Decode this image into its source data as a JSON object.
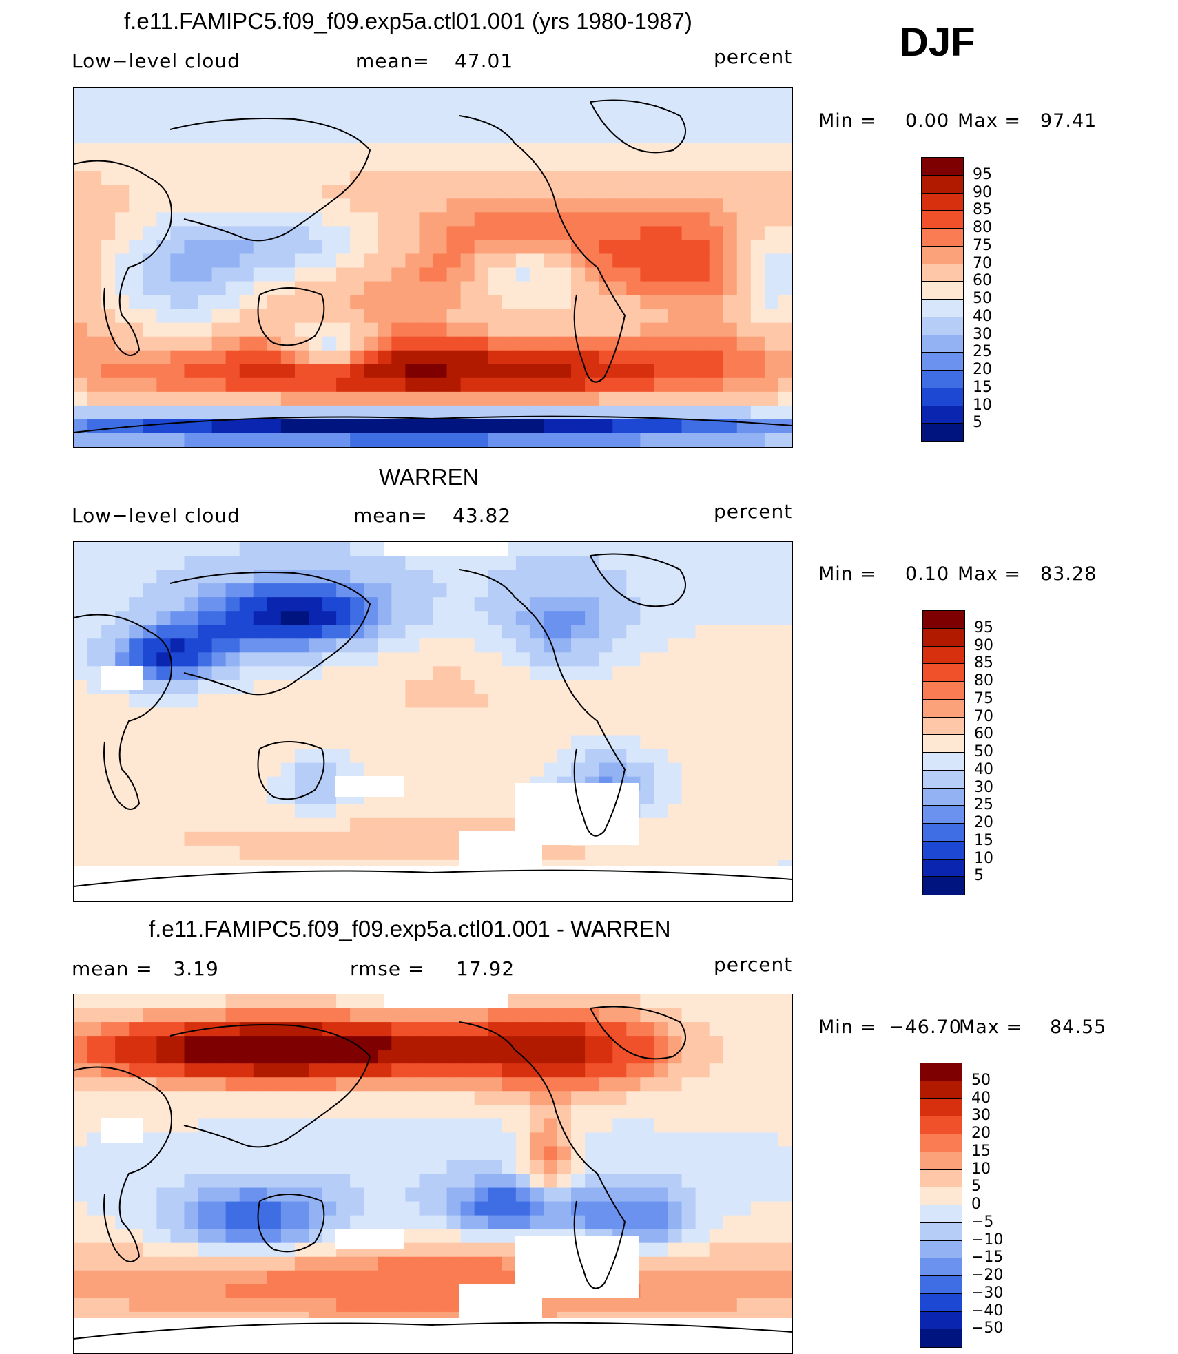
{
  "season": "DJF",
  "panels": [
    {
      "title": "f.e11.FAMIPC5.f09_f09.exp5a.ctl01.001 (yrs 1980-1987)",
      "left": "Low−level cloud",
      "mid_label": "mean=",
      "mid_value": "47.01",
      "right": "percent",
      "min_label": "Min =",
      "min_value": "0.00",
      "max_label": "Max =",
      "max_value": "97.41",
      "field": "model",
      "colorbar_labels": [
        "95",
        "90",
        "85",
        "80",
        "75",
        "70",
        "60",
        "50",
        "40",
        "30",
        "25",
        "20",
        "15",
        "10",
        "5"
      ],
      "colors": [
        "#7f0000",
        "#b21a00",
        "#d7300f",
        "#f0502a",
        "#f97c52",
        "#fba27a",
        "#fdc7a8",
        "#fee8d4",
        "#d8e6fb",
        "#b6cdf8",
        "#92b2f4",
        "#6a92ee",
        "#3f6ee4",
        "#1c48d4",
        "#0a25b0",
        "#001480"
      ]
    },
    {
      "title": "WARREN",
      "left": "Low−level cloud",
      "mid_label": "mean=",
      "mid_value": "43.82",
      "right": "percent",
      "min_label": "Min =",
      "min_value": "0.10",
      "max_label": "Max =",
      "max_value": "83.28",
      "field": "obs",
      "colorbar_labels": [
        "95",
        "90",
        "85",
        "80",
        "75",
        "70",
        "60",
        "50",
        "40",
        "30",
        "25",
        "20",
        "15",
        "10",
        "5"
      ],
      "colors": [
        "#7f0000",
        "#b21a00",
        "#d7300f",
        "#f0502a",
        "#f97c52",
        "#fba27a",
        "#fdc7a8",
        "#fee8d4",
        "#d8e6fb",
        "#b6cdf8",
        "#92b2f4",
        "#6a92ee",
        "#3f6ee4",
        "#1c48d4",
        "#0a25b0",
        "#001480"
      ]
    },
    {
      "title": "f.e11.FAMIPC5.f09_f09.exp5a.ctl01.001 - WARREN",
      "left": "mean =   3.19",
      "mid_label": "rmse =",
      "mid_value": "17.92",
      "right": "percent",
      "min_label": "Min =",
      "min_value": "−46.70",
      "max_label": "Max =",
      "max_value": "84.55",
      "field": "diff",
      "colorbar_labels": [
        "50",
        "40",
        "30",
        "20",
        "15",
        "10",
        "5",
        "0",
        "−5",
        "−10",
        "−15",
        "−20",
        "−30",
        "−40",
        "−50"
      ],
      "colors": [
        "#7f0000",
        "#b21a00",
        "#d7300f",
        "#f0502a",
        "#f97c52",
        "#fba27a",
        "#fdc7a8",
        "#fee8d4",
        "#d8e6fb",
        "#b6cdf8",
        "#92b2f4",
        "#6a92ee",
        "#3f6ee4",
        "#1c48d4",
        "#0a25b0",
        "#001480"
      ]
    }
  ]
}
